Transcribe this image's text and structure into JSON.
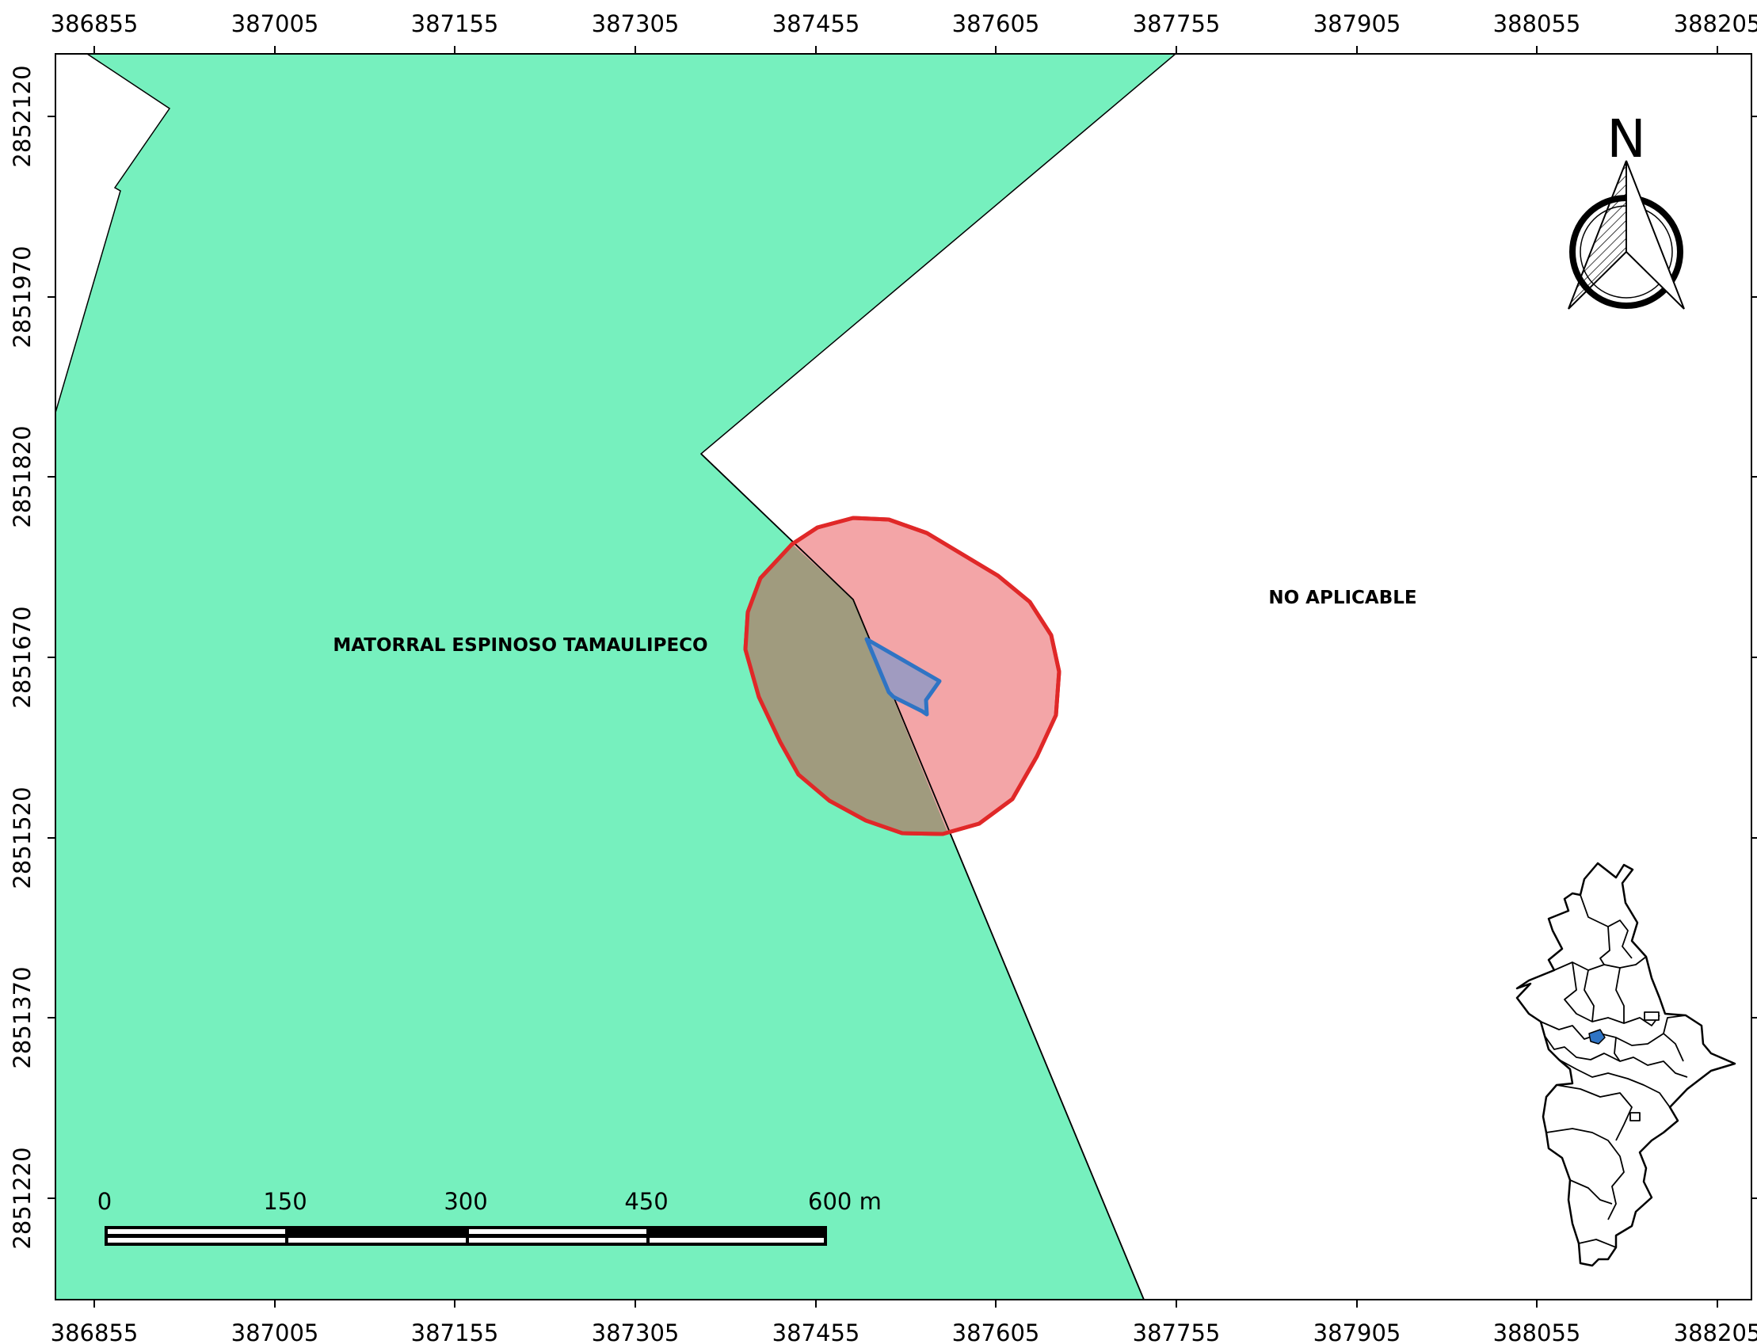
{
  "map": {
    "x_ticks": [
      "386855",
      "387005",
      "387155",
      "387305",
      "387455",
      "387605",
      "387755",
      "387905",
      "388055",
      "388205"
    ],
    "y_ticks": [
      "2852120",
      "2851970",
      "2851820",
      "2851670",
      "2851520",
      "2851370",
      "2851220"
    ],
    "zones": {
      "matorral_label": "MATORRAL ESPINOSO TAMAULIPECO",
      "no_aplicable_label": "NO APLICABLE"
    },
    "colors": {
      "matorral_fill": "#76f0be",
      "buffer_fill": "#f3a3a5",
      "buffer_stroke": "#e02828",
      "overlap_fill": "#a09b7e",
      "site_fill": "#a09bc0",
      "site_stroke": "#2f74c4",
      "locator_marker": "#2f74c4"
    },
    "north_arrow": {
      "letter": "N"
    },
    "scale_bar": {
      "labels": [
        "0",
        "150",
        "300",
        "450",
        "600 m"
      ]
    },
    "locator_map": {
      "icon": "state-outline-locator-icon"
    }
  }
}
